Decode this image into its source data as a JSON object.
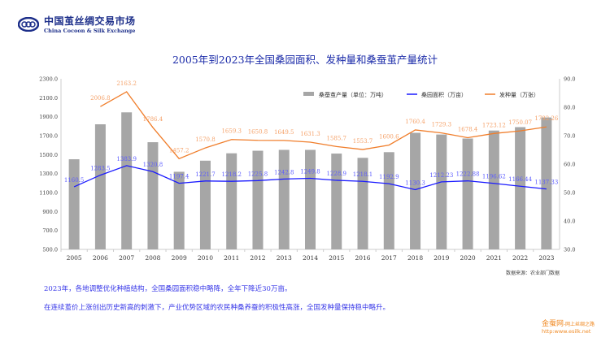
{
  "header": {
    "logo_cn": "中国茧丝绸交易市场",
    "logo_en": "China Cocoon & Silk Exchange"
  },
  "chart_data": {
    "type": "bar+line",
    "title": "2005年到2023年全国桑园面积、发种量和桑蚕茧产量统计",
    "categories": [
      "2005",
      "2006",
      "2007",
      "2008",
      "2009",
      "2010",
      "2011",
      "2012",
      "2013",
      "2014",
      "2015",
      "2016",
      "2017",
      "2018",
      "2019",
      "2020",
      "2021",
      "2022",
      "2023"
    ],
    "left_axis": {
      "ylim": [
        500,
        2300
      ],
      "ticks": [
        "500.0",
        "700.0",
        "900.0",
        "1100.0",
        "1300.0",
        "1500.0",
        "1700.0",
        "1900.0",
        "2100.0",
        "2300.0"
      ]
    },
    "right_axis": {
      "ylim": [
        30,
        90
      ],
      "ticks": [
        "30.0",
        "40.0",
        "50.0",
        "60.0",
        "70.0",
        "80.0",
        "90.0"
      ]
    },
    "legend_position": "top-right",
    "series": [
      {
        "name": "桑蚕茧产量（单位：万吨）",
        "type": "bar",
        "axis": "right",
        "color": "#a6a6a6",
        "values": [
          61.7,
          74,
          78.2,
          67.7,
          57.3,
          61.2,
          63.8,
          64.7,
          65,
          65,
          63.7,
          62.2,
          64.2,
          71,
          70.4,
          69,
          71.8,
          73,
          76.4
        ]
      },
      {
        "name": "桑园面积（万亩）",
        "type": "line",
        "axis": "left",
        "color": "#1a1aff",
        "labels": [
          "1160.5",
          "1283.5",
          "1383.9",
          "1320.8",
          "1197.4",
          "1221.7",
          "1218.2",
          "1225.8",
          "1242.8",
          "1249.8",
          "1228.9",
          "1218.1",
          "1192.9",
          "1130.3",
          "1212.23",
          "1222.88",
          "1196.62",
          "1166.44",
          "1137.33"
        ],
        "values": [
          1160.5,
          1283.5,
          1383.9,
          1320.8,
          1197.4,
          1221.7,
          1218.2,
          1225.8,
          1242.8,
          1249.8,
          1228.9,
          1218.1,
          1192.9,
          1130.3,
          1212.23,
          1222.88,
          1196.62,
          1166.44,
          1137.33
        ]
      },
      {
        "name": "发种量（万张）",
        "type": "line",
        "axis": "left",
        "color": "#f07d2a",
        "labels": [
          null,
          "2006.8",
          "2163.2",
          "1786.4",
          "1457.2",
          "1570.8",
          "1659.3",
          "1650.8",
          "1649.5",
          "1631.3",
          "1585.7",
          "1553.7",
          "1600.6",
          "1760.4",
          "1729.3",
          "1678.4",
          "1723.12",
          "1750.07",
          "1792.26"
        ],
        "values": [
          null,
          2006.8,
          2163.2,
          1786.4,
          1457.2,
          1570.8,
          1659.3,
          1650.8,
          1649.5,
          1631.3,
          1585.7,
          1553.7,
          1600.6,
          1760.4,
          1729.3,
          1678.4,
          1723.12,
          1750.07,
          1792.26
        ]
      }
    ]
  },
  "source": "数据来源：农业部门数据",
  "notes": [
    "2023年，各地调整优化种植结构，全国桑园面积稳中略降，全年下降近30万亩。",
    "在连续茧价上涨创出历史新高的刺激下，产业优势区域的农民种桑养蚕的积极性高涨，全国发种量保持稳中略升。"
  ],
  "watermark": {
    "name": "金蚕网",
    "slogan": "-网上丝绸之路",
    "url": "http:www.esilk.net"
  }
}
